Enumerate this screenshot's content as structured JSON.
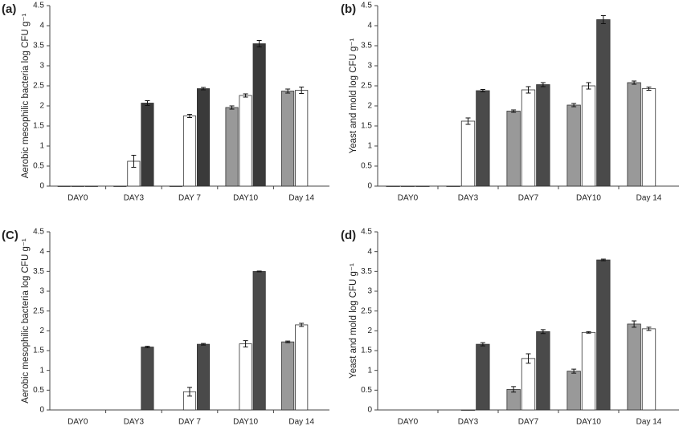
{
  "chart_data": [
    {
      "type": "bar",
      "panel_label": "(a)",
      "y_label": "Aerobic mesophilic bacteria log CFU g⁻¹",
      "categories": [
        "DAY0",
        "DAY3",
        "DAY 7",
        "DAY10",
        "Day 14"
      ],
      "ylim": [
        0,
        4.5
      ],
      "yticks": [
        0,
        0.5,
        1,
        1.5,
        2,
        2.5,
        3,
        3.5,
        4,
        4.5
      ],
      "series": [
        {
          "color": "#999999",
          "values": [
            0,
            0,
            0,
            1.96,
            2.37
          ],
          "errors": [
            0,
            0,
            0,
            0.04,
            0.05
          ]
        },
        {
          "color": "#ffffff",
          "values": [
            0,
            0.62,
            1.75,
            2.26,
            2.39
          ],
          "errors": [
            0,
            0.15,
            0.04,
            0.04,
            0.08
          ]
        },
        {
          "color": "#3a3a3a",
          "values": [
            0,
            2.07,
            2.43,
            3.55,
            null
          ],
          "errors": [
            0,
            0.06,
            0.03,
            0.08,
            null
          ]
        }
      ]
    },
    {
      "type": "bar",
      "panel_label": "(b)",
      "y_label": "Yeast and mold log CFU g⁻¹",
      "categories": [
        "DAY0",
        "DAY3",
        "DAY7",
        "DAY10",
        "Day 14"
      ],
      "ylim": [
        0,
        4.5
      ],
      "yticks": [
        0,
        0.5,
        1,
        1.5,
        2,
        2.5,
        3,
        3.5,
        4,
        4.5
      ],
      "series": [
        {
          "color": "#999999",
          "values": [
            0,
            0,
            1.87,
            2.02,
            2.58
          ],
          "errors": [
            0,
            0,
            0.03,
            0.04,
            0.04
          ]
        },
        {
          "color": "#ffffff",
          "values": [
            0,
            1.62,
            2.4,
            2.5,
            2.43
          ],
          "errors": [
            0,
            0.08,
            0.08,
            0.08,
            0.04
          ]
        },
        {
          "color": "#4a4a4a",
          "values": [
            0,
            2.38,
            2.53,
            4.15,
            null
          ],
          "errors": [
            0,
            0.03,
            0.05,
            0.1,
            null
          ]
        }
      ]
    },
    {
      "type": "bar",
      "panel_label": "(C)",
      "y_label": "Aerobic mesophilic bacteria log CFU g⁻¹",
      "categories": [
        "DAY0",
        "DAY3",
        "DAY 7",
        "DAY10",
        "Day 14"
      ],
      "ylim": [
        0,
        4.5
      ],
      "yticks": [
        0,
        0.5,
        1,
        1.5,
        2,
        2.5,
        3,
        3.5,
        4,
        4.5
      ],
      "series": [
        {
          "color": "#999999",
          "values": [
            null,
            null,
            null,
            null,
            1.72
          ],
          "errors": [
            null,
            null,
            null,
            null,
            0.02
          ]
        },
        {
          "color": "#ffffff",
          "values": [
            null,
            null,
            0.46,
            1.67,
            2.15
          ],
          "errors": [
            null,
            null,
            0.11,
            0.08,
            0.04
          ]
        },
        {
          "color": "#4a4a4a",
          "values": [
            null,
            1.59,
            1.66,
            3.5,
            null
          ],
          "errors": [
            null,
            0.02,
            0.02,
            0.01,
            null
          ]
        }
      ]
    },
    {
      "type": "bar",
      "panel_label": "(d)",
      "y_label": "Yeast and mold log CFU g⁻¹",
      "categories": [
        "DAY0",
        "DAY3",
        "DAY7",
        "DAY10",
        "Day 14"
      ],
      "ylim": [
        0,
        4.5
      ],
      "yticks": [
        0,
        0.5,
        1,
        1.5,
        2,
        2.5,
        3,
        3.5,
        4,
        4.5
      ],
      "series": [
        {
          "color": "#999999",
          "values": [
            null,
            null,
            0.52,
            0.98,
            2.17
          ],
          "errors": [
            null,
            null,
            0.07,
            0.05,
            0.08
          ]
        },
        {
          "color": "#ffffff",
          "values": [
            null,
            0,
            1.3,
            1.96,
            2.05
          ],
          "errors": [
            null,
            0,
            0.12,
            0.02,
            0.04
          ]
        },
        {
          "color": "#4a4a4a",
          "values": [
            null,
            1.66,
            1.98,
            3.79,
            null
          ],
          "errors": [
            null,
            0.04,
            0.05,
            0.02,
            null
          ]
        }
      ]
    }
  ]
}
